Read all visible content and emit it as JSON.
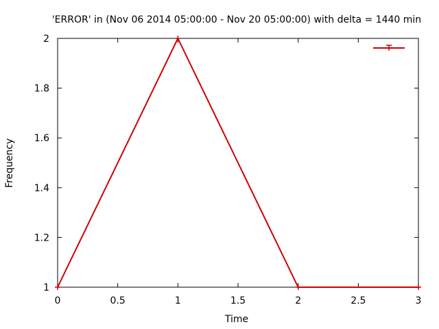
{
  "chart_data": {
    "type": "line",
    "title": "'ERROR' in (Nov 06 2014 05:00:00 - Nov 20 05:00:00) with delta = 1440 min",
    "xlabel": "Time",
    "ylabel": "Frequency",
    "xlim": [
      0,
      3
    ],
    "ylim": [
      1,
      2
    ],
    "x_ticks": [
      "0",
      "0.5",
      "1",
      "1.5",
      "2",
      "2.5",
      "3"
    ],
    "y_ticks": [
      "1",
      "1.2",
      "1.4",
      "1.6",
      "1.8",
      "2"
    ],
    "grid": false,
    "legend_position": "top-right",
    "series": [
      {
        "name": "",
        "color": "#cc0000",
        "marker": "plus",
        "x": [
          0,
          1,
          2,
          3
        ],
        "values": [
          1,
          2,
          1,
          1
        ]
      }
    ]
  }
}
